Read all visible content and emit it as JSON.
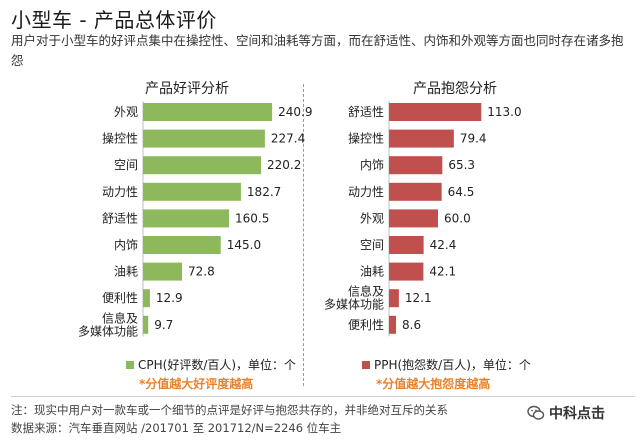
{
  "header": {
    "title": "小型车 - 产品总体评价",
    "subtitle": "用户对于小型车的好评点集中在操控性、空间和油耗等方面，而在舒适性、内饰和外观等方面也同时存在诸多抱怨"
  },
  "chart_data": [
    {
      "type": "bar",
      "orientation": "horizontal",
      "title": "产品好评分析",
      "categories": [
        "外观",
        "操控性",
        "空间",
        "动力性",
        "舒适性",
        "内饰",
        "油耗",
        "便利性",
        "信息及\n多媒体功能"
      ],
      "values": [
        240.9,
        227.4,
        220.2,
        182.7,
        160.5,
        145.0,
        72.8,
        12.9,
        9.7
      ],
      "value_labels": [
        "240.9",
        "227.4",
        "220.2",
        "182.7",
        "160.5",
        "145.0",
        "72.8",
        "12.9",
        "9.7"
      ],
      "color": "#8db95c",
      "xlim": [
        0,
        250
      ],
      "legend": "CPH(好评数/百人)，单位：个",
      "note": "*分值越大好评度越高"
    },
    {
      "type": "bar",
      "orientation": "horizontal",
      "title": "产品抱怨分析",
      "categories": [
        "舒适性",
        "操控性",
        "内饰",
        "动力性",
        "外观",
        "空间",
        "油耗",
        "信息及\n多媒体功能",
        "便利性"
      ],
      "values": [
        113.0,
        79.4,
        65.3,
        64.5,
        60.0,
        42.4,
        42.1,
        12.1,
        8.6
      ],
      "value_labels": [
        "113.0",
        "79.4",
        "65.3",
        "64.5",
        "60.0",
        "42.4",
        "42.1",
        "12.1",
        "8.6"
      ],
      "color": "#c0504d",
      "xlim": [
        0,
        120
      ],
      "legend": "PPH(抱怨数/百人)，单位：个",
      "note": "*分值越大抱怨度越高"
    }
  ],
  "footer": {
    "note": "注：现实中用户对一款车或一个细节的点评是好评与抱怨共存的，并非绝对互斥的关系",
    "source": "数据来源：汽车垂直网站 /201701 至 201712/N=2246 位车主",
    "logo_text": "中科点击"
  }
}
